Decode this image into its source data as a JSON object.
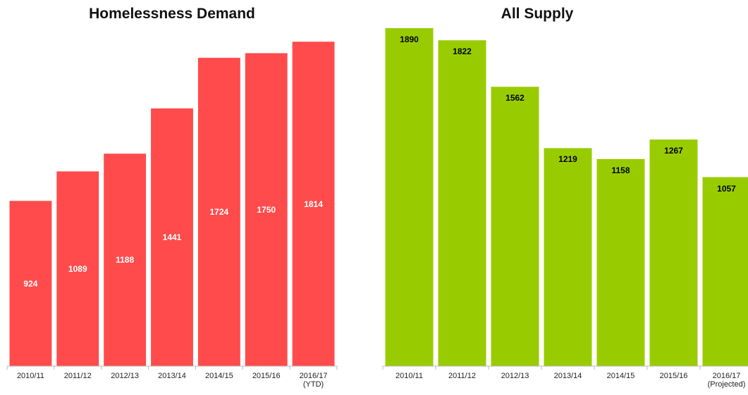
{
  "chart_data": [
    {
      "type": "bar",
      "title": "Homelessness Demand",
      "categories": [
        "2010/11",
        "2011/12",
        "2012/13",
        "2013/14",
        "2014/15",
        "2015/16",
        "2016/17\n(YTD)"
      ],
      "values": [
        924,
        1089,
        1188,
        1441,
        1724,
        1750,
        1814
      ],
      "color": "#ff4b4b",
      "label_color": "#ffffff",
      "label_position": "center",
      "ylim": [
        0,
        2000
      ]
    },
    {
      "type": "bar",
      "title": "All Supply",
      "categories": [
        "2010/11",
        "2011/12",
        "2012/13",
        "2013/14",
        "2014/15",
        "2015/16",
        "2016/17\n(Projected)"
      ],
      "values": [
        1890,
        1822,
        1562,
        1219,
        1158,
        1267,
        1057
      ],
      "color": "#99cc00",
      "label_color": "#000000",
      "label_position": "top",
      "ylim": [
        0,
        2000
      ]
    }
  ]
}
